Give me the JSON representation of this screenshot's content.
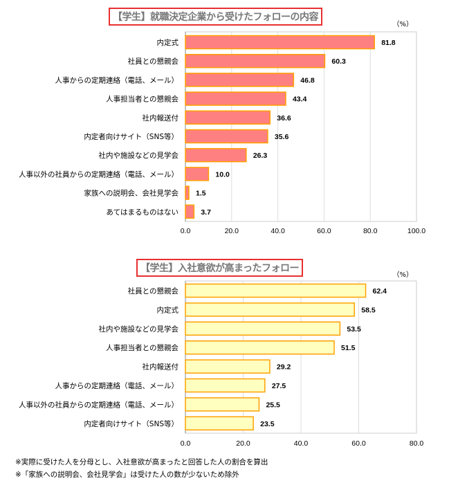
{
  "chart_data": [
    {
      "type": "bar",
      "orientation": "horizontal",
      "title": "【学生】就職決定企業から受けたフォローの内容",
      "unit_label": "（%）",
      "categories": [
        "内定式",
        "社員との懇親会",
        "人事からの定期連絡（電話、メール）",
        "人事担当者との懇親会",
        "社内報送付",
        "内定者向けサイト（SNS等）",
        "社内や施設などの見学会",
        "人事以外の社員からの定期連絡（電話、メール）",
        "家族への説明会、会社見学会",
        "あてはまるものはない"
      ],
      "values": [
        81.8,
        60.3,
        46.8,
        43.4,
        36.6,
        35.6,
        26.3,
        10.0,
        1.5,
        3.7
      ],
      "xlim": [
        0,
        100
      ],
      "ticks": [
        "0.0",
        "20.0",
        "40.0",
        "60.0",
        "80.0",
        "100.0"
      ],
      "grid": true,
      "bar_color": "#FF8080",
      "border_color": "#FFA000"
    },
    {
      "type": "bar",
      "orientation": "horizontal",
      "title": "【学生】入社意欲が高まったフォロー",
      "unit_label": "（%）",
      "categories": [
        "社員との懇親会",
        "内定式",
        "社内や施設などの見学会",
        "人事担当者との懇親会",
        "社内報送付",
        "人事からの定期連絡（電話、メール）",
        "人事以外の社員からの定期連絡（電話、メール）",
        "内定者向けサイト（SNS等）"
      ],
      "values": [
        62.4,
        58.5,
        53.5,
        51.5,
        29.2,
        27.5,
        25.5,
        23.5
      ],
      "xlim": [
        0,
        80
      ],
      "ticks": [
        "0.0",
        "20.0",
        "40.0",
        "60.0",
        "80.0"
      ],
      "grid": true,
      "bar_color": "#FFFFC0",
      "border_color": "#FFA000"
    }
  ],
  "notes": [
    "※実際に受けた人を分母とし、入社意欲が高まったと回答した人の割合を算出",
    "※「家族への説明会、会社見学会」は受けた人の数が少ないため除外"
  ]
}
